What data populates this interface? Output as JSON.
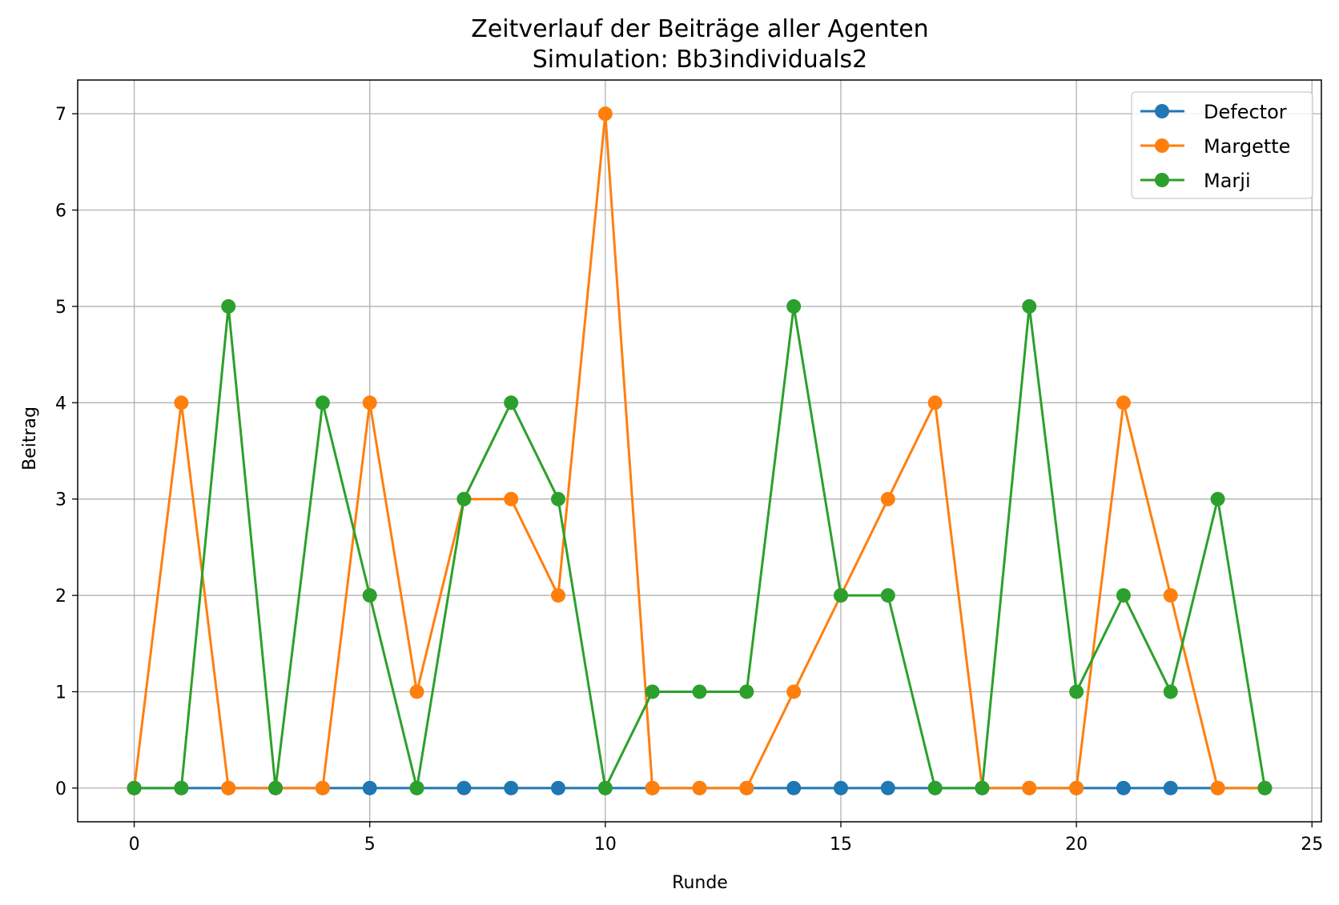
{
  "chart_data": {
    "type": "line",
    "title": "Zeitverlauf der Beiträge aller Agenten",
    "subtitle": "Simulation: Bb3individuals2",
    "xlabel": "Runde",
    "ylabel": "Beitrag",
    "xlim": [
      -1.2,
      25.2
    ],
    "ylim": [
      -0.35,
      7.35
    ],
    "xticks": [
      0,
      5,
      10,
      15,
      20,
      25
    ],
    "yticks": [
      0,
      1,
      2,
      3,
      4,
      5,
      6,
      7
    ],
    "grid": true,
    "legend_position": "top-right",
    "x": [
      0,
      1,
      2,
      3,
      4,
      5,
      6,
      7,
      8,
      9,
      10,
      11,
      12,
      13,
      14,
      15,
      16,
      17,
      18,
      19,
      20,
      21,
      22,
      23,
      24
    ],
    "series": [
      {
        "name": "Defector",
        "color": "#1f77b4",
        "values": [
          0,
          0,
          0,
          0,
          0,
          0,
          0,
          0,
          0,
          0,
          0,
          0,
          0,
          0,
          0,
          0,
          0,
          0,
          0,
          0,
          0,
          0,
          0,
          0,
          0
        ]
      },
      {
        "name": "Margette",
        "color": "#ff7f0e",
        "values": [
          0,
          4,
          0,
          0,
          0,
          4,
          1,
          3,
          3,
          2,
          7,
          0,
          0,
          0,
          1,
          2,
          3,
          4,
          0,
          0,
          0,
          4,
          2,
          0,
          0
        ]
      },
      {
        "name": "Marji",
        "color": "#2ca02c",
        "values": [
          0,
          0,
          5,
          0,
          4,
          2,
          0,
          3,
          4,
          3,
          0,
          1,
          1,
          1,
          5,
          2,
          2,
          0,
          0,
          5,
          1,
          2,
          1,
          3,
          0
        ]
      }
    ]
  }
}
